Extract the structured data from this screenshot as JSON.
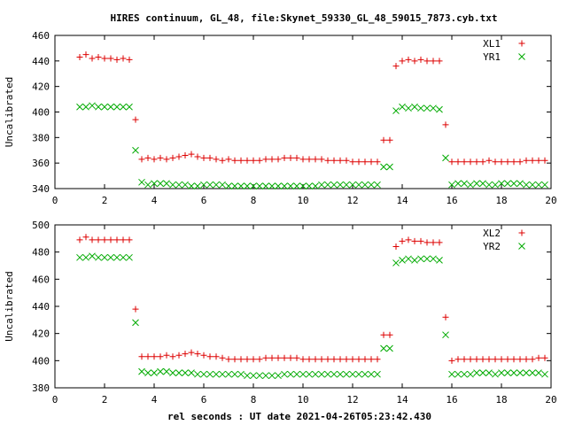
{
  "chart_data": [
    {
      "type": "scatter",
      "title": "HIRES continuum, GL_48, file:Skynet_59330_GL_48_59015_7873.cyb.txt",
      "xlabel": "",
      "ylabel": "Uncalibrated",
      "xlim": [
        0,
        20
      ],
      "ylim": [
        340,
        460
      ],
      "xticks": [
        0,
        2,
        4,
        6,
        8,
        10,
        12,
        14,
        16,
        18,
        20
      ],
      "yticks": [
        340,
        360,
        380,
        400,
        420,
        440,
        460
      ],
      "grid": false,
      "legend": "top-right",
      "x": [
        1.0,
        1.25,
        1.5,
        1.75,
        2.0,
        2.25,
        2.5,
        2.75,
        3.0,
        3.25,
        3.5,
        3.75,
        4.0,
        4.25,
        4.5,
        4.75,
        5.0,
        5.25,
        5.5,
        5.75,
        6.0,
        6.25,
        6.5,
        6.75,
        7.0,
        7.25,
        7.5,
        7.75,
        8.0,
        8.25,
        8.5,
        8.75,
        9.0,
        9.25,
        9.5,
        9.75,
        10.0,
        10.25,
        10.5,
        10.75,
        11.0,
        11.25,
        11.5,
        11.75,
        12.0,
        12.25,
        12.5,
        12.75,
        13.0,
        13.25,
        13.5,
        13.75,
        14.0,
        14.25,
        14.5,
        14.75,
        15.0,
        15.25,
        15.5,
        15.75,
        16.0,
        16.25,
        16.5,
        16.75,
        17.0,
        17.25,
        17.5,
        17.75,
        18.0,
        18.25,
        18.5,
        18.75,
        19.0,
        19.25,
        19.5,
        19.75
      ],
      "series": [
        {
          "name": "XL1",
          "marker": "plus",
          "color": "#dd0000",
          "values": [
            443,
            445,
            442,
            443,
            442,
            442,
            441,
            442,
            441,
            394,
            363,
            364,
            363,
            364,
            363,
            364,
            365,
            366,
            367,
            365,
            364,
            364,
            363,
            362,
            363,
            362,
            362,
            362,
            362,
            362,
            363,
            363,
            363,
            364,
            364,
            364,
            363,
            363,
            363,
            363,
            362,
            362,
            362,
            362,
            361,
            361,
            361,
            361,
            361,
            378,
            378,
            436,
            440,
            441,
            440,
            441,
            440,
            440,
            440,
            390,
            361,
            361,
            361,
            361,
            361,
            361,
            362,
            361,
            361,
            361,
            361,
            361,
            362,
            362,
            362,
            362
          ]
        },
        {
          "name": "YR1",
          "marker": "cross",
          "color": "#00aa00",
          "values": [
            404,
            404,
            405,
            404,
            404,
            404,
            404,
            404,
            404,
            370,
            345,
            343,
            344,
            344,
            344,
            343,
            343,
            343,
            342,
            342,
            343,
            343,
            343,
            343,
            342,
            342,
            342,
            342,
            342,
            342,
            342,
            342,
            342,
            342,
            342,
            342,
            342,
            342,
            342,
            343,
            343,
            343,
            343,
            343,
            343,
            343,
            343,
            343,
            343,
            357,
            357,
            401,
            404,
            403,
            404,
            403,
            403,
            403,
            402,
            364,
            343,
            344,
            344,
            343,
            344,
            344,
            343,
            343,
            344,
            344,
            344,
            344,
            343,
            343,
            343,
            343
          ]
        }
      ]
    },
    {
      "type": "scatter",
      "title": "",
      "xlabel": "rel seconds : UT date 2021-04-26T05:23:42.430",
      "ylabel": "Uncalibrated",
      "xlim": [
        0,
        20
      ],
      "ylim": [
        380,
        500
      ],
      "xticks": [
        0,
        2,
        4,
        6,
        8,
        10,
        12,
        14,
        16,
        18,
        20
      ],
      "yticks": [
        380,
        400,
        420,
        440,
        460,
        480,
        500
      ],
      "grid": false,
      "legend": "top-right",
      "x": [
        1.0,
        1.25,
        1.5,
        1.75,
        2.0,
        2.25,
        2.5,
        2.75,
        3.0,
        3.25,
        3.5,
        3.75,
        4.0,
        4.25,
        4.5,
        4.75,
        5.0,
        5.25,
        5.5,
        5.75,
        6.0,
        6.25,
        6.5,
        6.75,
        7.0,
        7.25,
        7.5,
        7.75,
        8.0,
        8.25,
        8.5,
        8.75,
        9.0,
        9.25,
        9.5,
        9.75,
        10.0,
        10.25,
        10.5,
        10.75,
        11.0,
        11.25,
        11.5,
        11.75,
        12.0,
        12.25,
        12.5,
        12.75,
        13.0,
        13.25,
        13.5,
        13.75,
        14.0,
        14.25,
        14.5,
        14.75,
        15.0,
        15.25,
        15.5,
        15.75,
        16.0,
        16.25,
        16.5,
        16.75,
        17.0,
        17.25,
        17.5,
        17.75,
        18.0,
        18.25,
        18.5,
        18.75,
        19.0,
        19.25,
        19.5,
        19.75
      ],
      "series": [
        {
          "name": "XL2",
          "marker": "plus",
          "color": "#dd0000",
          "values": [
            489,
            491,
            489,
            489,
            489,
            489,
            489,
            489,
            489,
            438,
            403,
            403,
            403,
            403,
            404,
            403,
            404,
            405,
            406,
            405,
            404,
            403,
            403,
            402,
            401,
            401,
            401,
            401,
            401,
            401,
            402,
            402,
            402,
            402,
            402,
            402,
            401,
            401,
            401,
            401,
            401,
            401,
            401,
            401,
            401,
            401,
            401,
            401,
            401,
            419,
            419,
            484,
            488,
            489,
            488,
            488,
            487,
            487,
            487,
            432,
            400,
            401,
            401,
            401,
            401,
            401,
            401,
            401,
            401,
            401,
            401,
            401,
            401,
            401,
            402,
            402
          ]
        },
        {
          "name": "YR2",
          "marker": "cross",
          "color": "#00aa00",
          "values": [
            476,
            476,
            477,
            476,
            476,
            476,
            476,
            476,
            476,
            428,
            392,
            391,
            391,
            392,
            392,
            391,
            391,
            391,
            391,
            390,
            390,
            390,
            390,
            390,
            390,
            390,
            390,
            389,
            389,
            389,
            389,
            389,
            389,
            390,
            390,
            390,
            390,
            390,
            390,
            390,
            390,
            390,
            390,
            390,
            390,
            390,
            390,
            390,
            390,
            409,
            409,
            472,
            474,
            475,
            474,
            475,
            475,
            475,
            474,
            419,
            390,
            390,
            390,
            390,
            391,
            391,
            391,
            390,
            391,
            391,
            391,
            391,
            391,
            391,
            391,
            390
          ]
        }
      ]
    }
  ]
}
